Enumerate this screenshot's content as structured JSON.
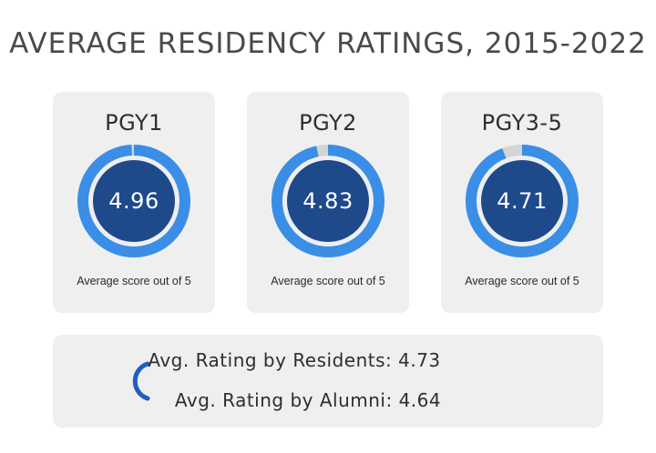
{
  "chart_data": {
    "type": "gauge",
    "title": "AVERAGE RESIDENCY RATINGS, 2015-2022",
    "max": 5,
    "items": [
      {
        "label": "PGY1",
        "value": 4.96,
        "display": "4.96",
        "caption": "Average score out of 5"
      },
      {
        "label": "PGY2",
        "value": 4.83,
        "display": "4.83",
        "caption": "Average score out of 5"
      },
      {
        "label": "PGY3-5",
        "value": 4.71,
        "display": "4.71",
        "caption": "Average score out of 5"
      }
    ],
    "summary": [
      "Avg. Rating by Residents: 4.73",
      "Avg. Rating by Alumni: 4.64"
    ],
    "colors": {
      "ring": "#3a8ee6",
      "ring_track": "#d4d4d4",
      "inner": "#1e4a8c",
      "card_bg": "#efefef",
      "icon": "#1f5fbf"
    }
  }
}
